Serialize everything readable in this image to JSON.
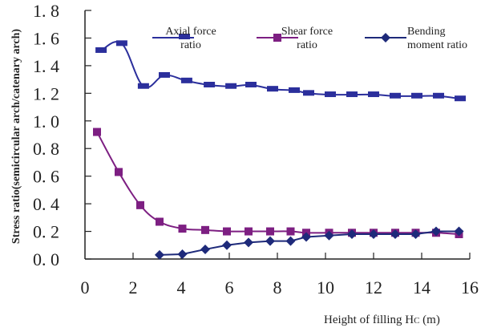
{
  "chart_data": {
    "type": "line",
    "title": "",
    "xlabel": "Height of filling H",
    "xlabel_sub": "C",
    "xlabel_unit": " (m)",
    "ylabel": "Stress ratio(semicircular arch/catenary arch)",
    "xlim": [
      0,
      16
    ],
    "ylim": [
      0.0,
      1.8
    ],
    "xticks": [
      "0",
      "2",
      "4",
      "6",
      "8",
      "10",
      "12",
      "14",
      "16"
    ],
    "xtick_values": [
      0,
      2,
      4,
      6,
      8,
      10,
      12,
      14,
      16
    ],
    "yticks": [
      "0. 0",
      "0. 2",
      "0. 4",
      "0. 6",
      "0. 8",
      "1. 0",
      "1. 2",
      "1. 4",
      "1. 6",
      "1. 8"
    ],
    "ytick_values": [
      0.0,
      0.2,
      0.4,
      0.6,
      0.8,
      1.0,
      1.2,
      1.4,
      1.6,
      1.8
    ],
    "grid": false,
    "legend_position": "top",
    "series": [
      {
        "name": "Axial force ratio",
        "legend_lines": [
          "Axial force",
          "ratio"
        ],
        "color": "#2b2f9c",
        "marker": "flat-rect",
        "smooth": true,
        "x": [
          0.67,
          1.53,
          2.43,
          3.3,
          4.23,
          5.17,
          6.07,
          6.9,
          7.8,
          8.7,
          9.3,
          10.2,
          11.1,
          12.0,
          12.9,
          13.8,
          14.7,
          15.6
        ],
        "y": [
          1.51,
          1.56,
          1.25,
          1.33,
          1.29,
          1.26,
          1.25,
          1.26,
          1.23,
          1.22,
          1.2,
          1.19,
          1.19,
          1.19,
          1.18,
          1.18,
          1.18,
          1.16
        ]
      },
      {
        "name": "Shear force ratio",
        "legend_lines": [
          "Shear force",
          "ratio"
        ],
        "color": "#7d1f82",
        "marker": "square",
        "smooth": true,
        "x": [
          0.5,
          1.4,
          2.3,
          3.1,
          4.05,
          5.0,
          5.9,
          6.8,
          7.7,
          8.55,
          9.2,
          10.15,
          11.1,
          12.0,
          12.9,
          13.75,
          14.6,
          15.55
        ],
        "y": [
          0.92,
          0.63,
          0.39,
          0.27,
          0.22,
          0.21,
          0.2,
          0.2,
          0.2,
          0.2,
          0.19,
          0.19,
          0.19,
          0.19,
          0.19,
          0.19,
          0.19,
          0.18
        ]
      },
      {
        "name": "Bending moment ratio",
        "legend_lines": [
          "Bending",
          "moment ratio"
        ],
        "color": "#1e2a7a",
        "marker": "diamond",
        "smooth": false,
        "x": [
          3.1,
          4.05,
          5.0,
          5.9,
          6.8,
          7.7,
          8.55,
          9.2,
          10.15,
          11.1,
          12.0,
          12.9,
          13.75,
          14.6,
          15.55
        ],
        "y": [
          0.03,
          0.035,
          0.07,
          0.1,
          0.12,
          0.13,
          0.13,
          0.16,
          0.17,
          0.18,
          0.18,
          0.18,
          0.18,
          0.2,
          0.2
        ]
      }
    ]
  }
}
